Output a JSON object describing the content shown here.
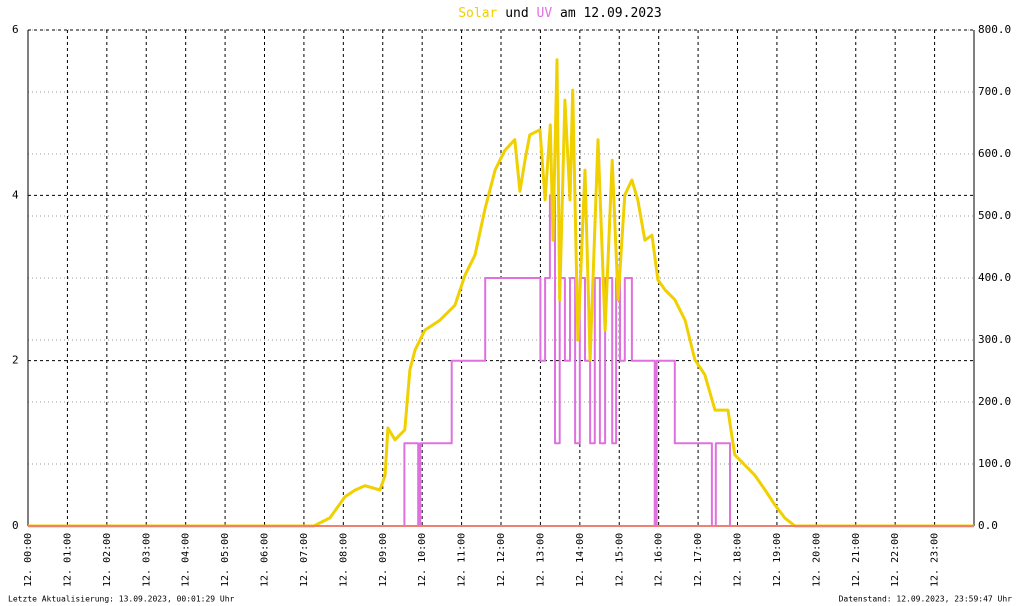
{
  "chart_data": {
    "type": "line",
    "title_join": "und",
    "title_date": "am 12.09.2023",
    "xlim": [
      0,
      24
    ],
    "xticks": [
      {
        "value": 0,
        "label": "12. 00:00"
      },
      {
        "value": 1,
        "label": "12. 01:00"
      },
      {
        "value": 2,
        "label": "12. 02:00"
      },
      {
        "value": 3,
        "label": "12. 03:00"
      },
      {
        "value": 4,
        "label": "12. 04:00"
      },
      {
        "value": 5,
        "label": "12. 05:00"
      },
      {
        "value": 6,
        "label": "12. 06:00"
      },
      {
        "value": 7,
        "label": "12. 07:00"
      },
      {
        "value": 8,
        "label": "12. 08:00"
      },
      {
        "value": 9,
        "label": "12. 09:00"
      },
      {
        "value": 10,
        "label": "12. 10:00"
      },
      {
        "value": 11,
        "label": "12. 11:00"
      },
      {
        "value": 12,
        "label": "12. 12:00"
      },
      {
        "value": 13,
        "label": "12. 13:00"
      },
      {
        "value": 14,
        "label": "12. 14:00"
      },
      {
        "value": 15,
        "label": "12. 15:00"
      },
      {
        "value": 16,
        "label": "12. 16:00"
      },
      {
        "value": 17,
        "label": "12. 17:00"
      },
      {
        "value": 18,
        "label": "12. 18:00"
      },
      {
        "value": 19,
        "label": "12. 19:00"
      },
      {
        "value": 20,
        "label": "12. 20:00"
      },
      {
        "value": 21,
        "label": "12. 21:00"
      },
      {
        "value": 22,
        "label": "12. 22:00"
      },
      {
        "value": 23,
        "label": "12. 23:00"
      }
    ],
    "ylim": [
      0,
      6
    ],
    "yticks": [
      0,
      2,
      4,
      6
    ],
    "y2lim": [
      0,
      800
    ],
    "y2ticks": [
      {
        "value": 0,
        "label": "0.0"
      },
      {
        "value": 100,
        "label": "100.0"
      },
      {
        "value": 200,
        "label": "200.0"
      },
      {
        "value": 300,
        "label": "300.0"
      },
      {
        "value": 400,
        "label": "400.0"
      },
      {
        "value": 500,
        "label": "500.0"
      },
      {
        "value": 600,
        "label": "600.0"
      },
      {
        "value": 700,
        "label": "700.0"
      },
      {
        "value": 800,
        "label": "800.0"
      }
    ],
    "grid": true,
    "series": [
      {
        "name": "Solar",
        "color": "#f0d000",
        "axis": "y2",
        "x": [
          0,
          7.0,
          7.25,
          7.66,
          8.04,
          8.3,
          8.55,
          8.93,
          9.06,
          9.13,
          9.31,
          9.56,
          9.69,
          9.82,
          10.07,
          10.45,
          10.83,
          11.09,
          11.34,
          11.59,
          11.85,
          12.1,
          12.35,
          12.48,
          12.61,
          12.73,
          12.99,
          13.12,
          13.25,
          13.32,
          13.42,
          13.49,
          13.62,
          13.75,
          13.82,
          13.95,
          14.13,
          14.26,
          14.46,
          14.64,
          14.82,
          14.97,
          15.14,
          15.32,
          15.47,
          15.65,
          15.83,
          15.98,
          16.16,
          16.41,
          16.67,
          16.92,
          17.17,
          17.43,
          17.76,
          17.93,
          18.19,
          18.44,
          18.7,
          18.95,
          19.2,
          19.46,
          24
        ],
        "values": [
          0,
          0,
          0,
          13,
          47,
          58,
          65,
          58,
          82,
          158,
          139,
          155,
          252,
          284,
          316,
          332,
          356,
          405,
          437,
          510,
          574,
          606,
          623,
          540,
          590,
          631,
          639,
          526,
          647,
          461,
          752,
          365,
          687,
          526,
          703,
          300,
          574,
          268,
          623,
          316,
          590,
          365,
          534,
          558,
          526,
          461,
          469,
          397,
          381,
          365,
          332,
          268,
          244,
          187,
          187,
          115,
          98,
          82,
          58,
          34,
          13,
          0,
          0
        ]
      },
      {
        "name": "UV",
        "color": "#e070e0",
        "x": [
          0,
          9.55,
          9.55,
          9.9,
          9.9,
          9.95,
          9.95,
          10.75,
          10.75,
          11.6,
          11.6,
          13.0,
          13.0,
          13.12,
          13.12,
          13.24,
          13.24,
          13.37,
          13.37,
          13.49,
          13.49,
          13.62,
          13.62,
          13.75,
          13.75,
          13.88,
          13.88,
          14.0,
          14.0,
          14.13,
          14.13,
          14.26,
          14.26,
          14.38,
          14.38,
          14.51,
          14.51,
          14.64,
          14.64,
          14.82,
          14.82,
          14.92,
          14.92,
          15.02,
          15.02,
          15.14,
          15.14,
          15.32,
          15.32,
          15.9,
          15.9,
          15.95,
          15.95,
          16.41,
          16.41,
          17.35,
          17.35,
          17.45,
          17.45,
          17.81,
          17.81,
          24
        ],
        "values": [
          0,
          0,
          1,
          1,
          0,
          0,
          1,
          1,
          2,
          2,
          3,
          3,
          2,
          2,
          3,
          3,
          4,
          4,
          1,
          1,
          3,
          3,
          2,
          2,
          3,
          3,
          1,
          1,
          3,
          3,
          2,
          2,
          1,
          1,
          3,
          3,
          1,
          1,
          3,
          3,
          1,
          1,
          3,
          3,
          2,
          2,
          3,
          3,
          2,
          2,
          0,
          0,
          2,
          2,
          1,
          1,
          0,
          0,
          1,
          1,
          0,
          0
        ]
      }
    ]
  },
  "footer": {
    "left": "Letzte Aktualisierung: 13.09.2023, 00:01:29 Uhr",
    "right": "Datenstand: 12.09.2023, 23:59:47 Uhr"
  }
}
